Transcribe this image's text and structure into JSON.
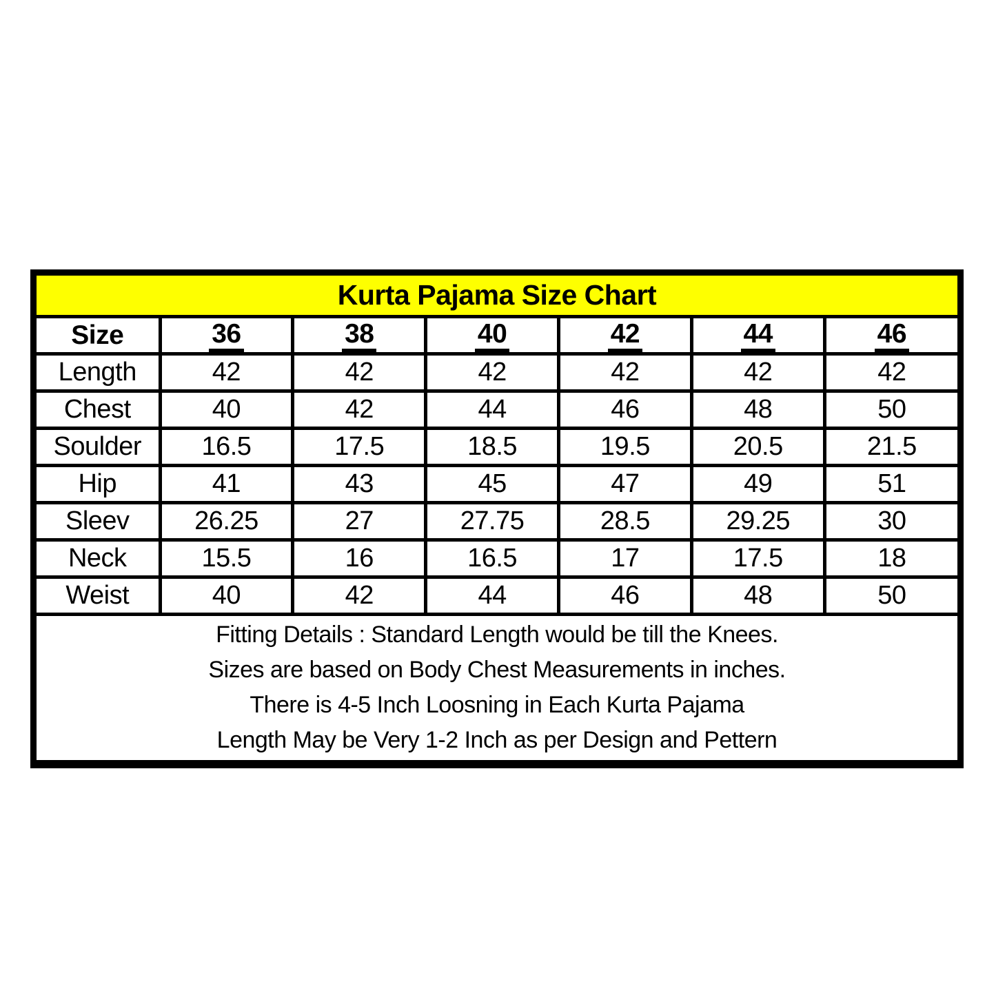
{
  "page": {
    "background_color": "#ffffff",
    "border_color": "#000000",
    "header_bg_color": "#feff00",
    "text_color": "#000000"
  },
  "chart_data": {
    "type": "table",
    "title": "Kurta Pajama Size Chart",
    "columns": [
      "Size",
      "36",
      "38",
      "40",
      "42",
      "44",
      "46"
    ],
    "rows": [
      {
        "label": "Length",
        "values": [
          "42",
          "42",
          "42",
          "42",
          "42",
          "42"
        ]
      },
      {
        "label": "Chest",
        "values": [
          "40",
          "42",
          "44",
          "46",
          "48",
          "50"
        ]
      },
      {
        "label": "Soulder",
        "values": [
          "16.5",
          "17.5",
          "18.5",
          "19.5",
          "20.5",
          "21.5"
        ]
      },
      {
        "label": "Hip",
        "values": [
          "41",
          "43",
          "45",
          "47",
          "49",
          "51"
        ]
      },
      {
        "label": "Sleev",
        "values": [
          "26.25",
          "27",
          "27.75",
          "28.5",
          "29.25",
          "30"
        ]
      },
      {
        "label": "Neck",
        "values": [
          "15.5",
          "16",
          "16.5",
          "17",
          "17.5",
          "18"
        ]
      },
      {
        "label": "Weist",
        "values": [
          "40",
          "42",
          "44",
          "46",
          "48",
          "50"
        ]
      }
    ],
    "notes": [
      "Fitting Details : Standard Length would be till the Knees.",
      "Sizes are based on Body Chest Measurements in inches.",
      "There is 4-5 Inch Loosning in Each Kurta Pajama",
      "Length May be Very 1-2 Inch as per Design and Pettern"
    ],
    "layout_hints": {
      "legend": "none",
      "grid": "all-cell-borders",
      "title_position": "top-banner-yellow",
      "underlined_headers": [
        "36",
        "38",
        "40",
        "42",
        "44",
        "46"
      ]
    }
  }
}
